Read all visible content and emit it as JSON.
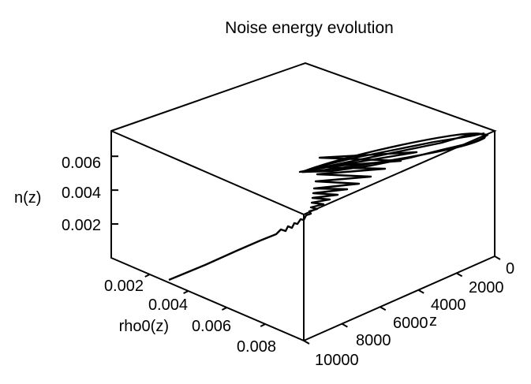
{
  "chart_data": {
    "type": "line3d",
    "title": "Noise energy evolution",
    "axes": {
      "z": {
        "label": "z",
        "range": [
          0,
          10000
        ],
        "ticks": [
          "0",
          "2000",
          "4000",
          "6000",
          "8000",
          "10000"
        ]
      },
      "rho": {
        "label": "rho0(z)",
        "range": [
          0,
          0.01
        ],
        "ticks": [
          "0.002",
          "0.004",
          "0.006",
          "0.008"
        ]
      },
      "n": {
        "label": "n(z)",
        "range": [
          0,
          0.0075
        ],
        "ticks": [
          "0.002",
          "0.004",
          "0.006"
        ]
      }
    },
    "series": [
      {
        "description_points": [
          {
            "z": 0,
            "rho": 0.0088,
            "n": 0.007
          },
          {
            "z": 200,
            "rho": 0.005,
            "n": 0.0058
          },
          {
            "z": 600,
            "rho": 0.002,
            "n": 0.0048
          },
          {
            "z": 1200,
            "rho": 0.0065,
            "n": 0.0052
          },
          {
            "z": 1800,
            "rho": 0.003,
            "n": 0.0044
          },
          {
            "z": 2600,
            "rho": 0.0055,
            "n": 0.004
          },
          {
            "z": 3500,
            "rho": 0.004,
            "n": 0.0034
          },
          {
            "z": 4500,
            "rho": 0.0046,
            "n": 0.0031
          },
          {
            "z": 6000,
            "rho": 0.0045,
            "n": 0.0027
          },
          {
            "z": 10000,
            "rho": 0.0045,
            "n": 0.0025
          }
        ]
      }
    ]
  }
}
